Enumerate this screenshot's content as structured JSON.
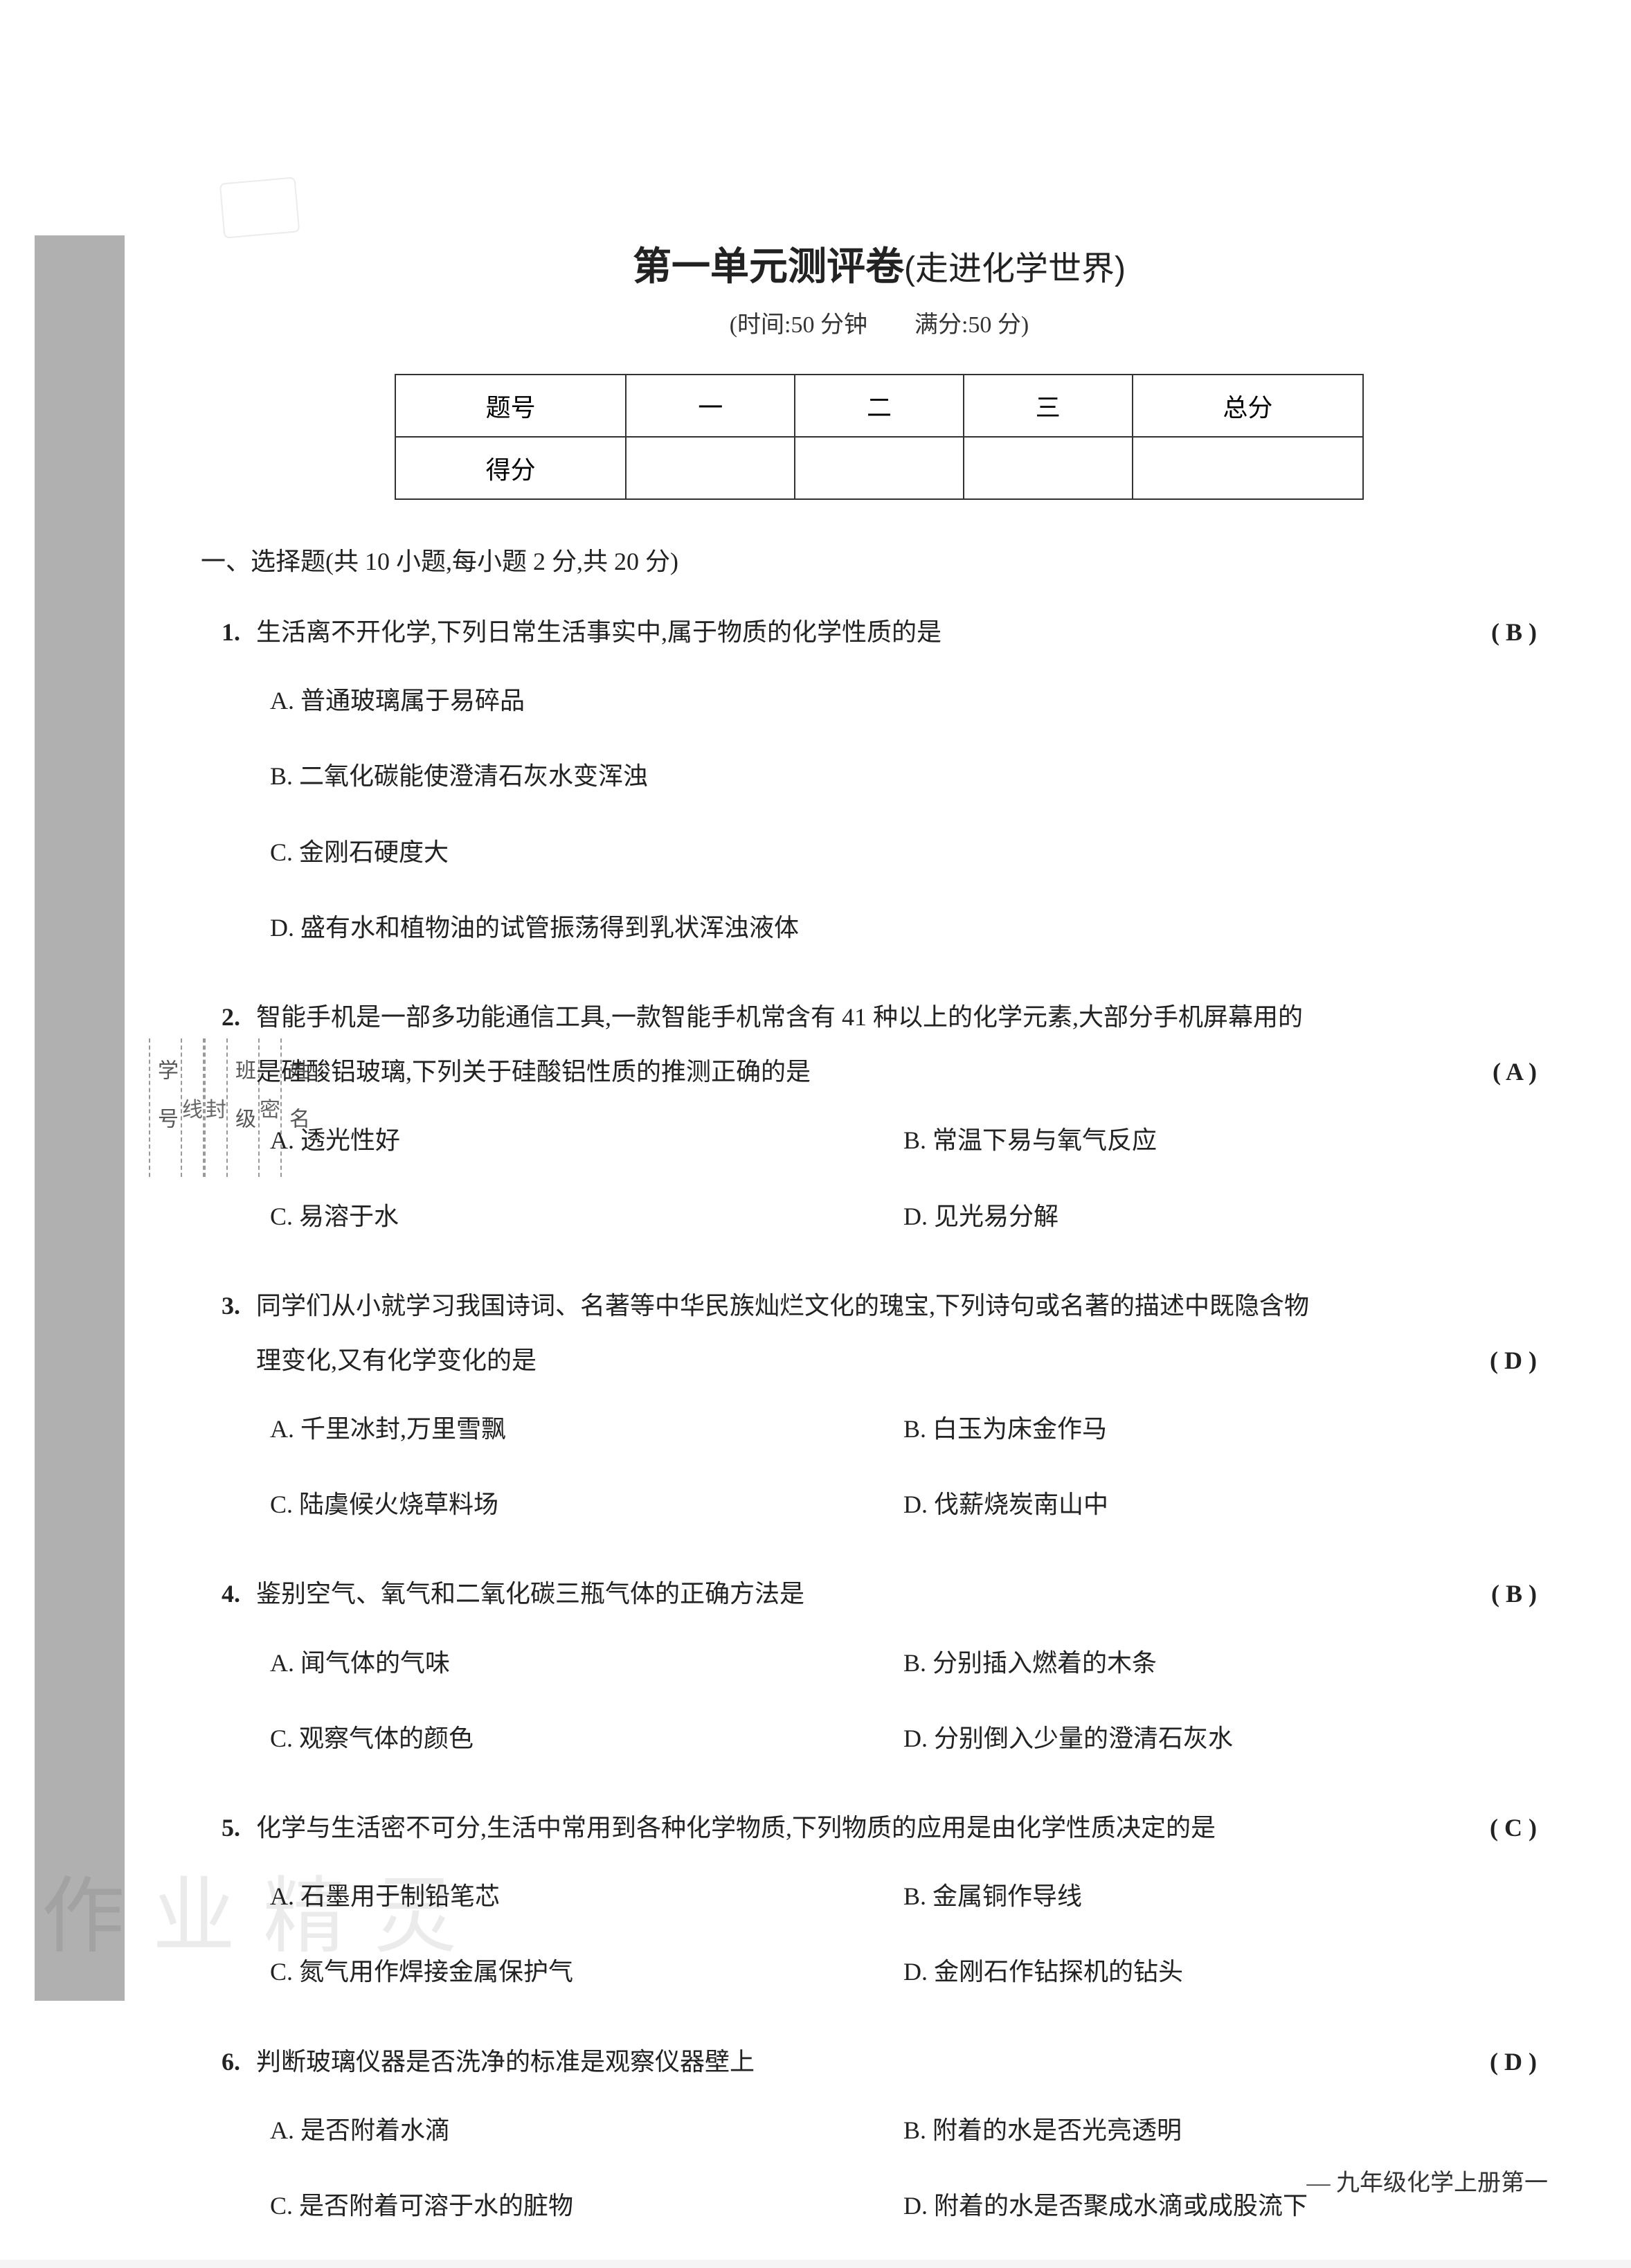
{
  "title_main": "第一单元测评卷",
  "title_sub": "(走进化学世界)",
  "subtitle": "(时间:50 分钟　　满分:50 分)",
  "score_table": {
    "headers": [
      "题号",
      "一",
      "二",
      "三",
      "总分"
    ],
    "row_label": "得分"
  },
  "section1": {
    "header": "一、选择题(共 10 小题,每小题 2 分,共 20 分)"
  },
  "questions": [
    {
      "num": "1.",
      "stem": "生活离不开化学,下列日常生活事实中,属于物质的化学性质的是",
      "answer": "( B )",
      "layout": "single",
      "options": [
        "A. 普通玻璃属于易碎品",
        "B. 二氧化碳能使澄清石灰水变浑浊",
        "C. 金刚石硬度大",
        "D. 盛有水和植物油的试管振荡得到乳状浑浊液体"
      ]
    },
    {
      "num": "2.",
      "stem": "智能手机是一部多功能通信工具,一款智能手机常含有 41 种以上的化学元素,大部分手机屏幕用的",
      "stem2": "是硅酸铝玻璃,下列关于硅酸铝性质的推测正确的是",
      "answer": "( A )",
      "layout": "double",
      "options": [
        [
          "A. 透光性好",
          "B. 常温下易与氧气反应"
        ],
        [
          "C. 易溶于水",
          "D. 见光易分解"
        ]
      ]
    },
    {
      "num": "3.",
      "stem": "同学们从小就学习我国诗词、名著等中华民族灿烂文化的瑰宝,下列诗句或名著的描述中既隐含物",
      "stem2": "理变化,又有化学变化的是",
      "answer": "( D )",
      "layout": "double",
      "options": [
        [
          "A. 千里冰封,万里雪飘",
          "B. 白玉为床金作马"
        ],
        [
          "C. 陆虞候火烧草料场",
          "D. 伐薪烧炭南山中"
        ]
      ]
    },
    {
      "num": "4.",
      "stem": "鉴别空气、氧气和二氧化碳三瓶气体的正确方法是",
      "answer": "( B )",
      "layout": "double",
      "options": [
        [
          "A. 闻气体的气味",
          "B. 分别插入燃着的木条"
        ],
        [
          "C. 观察气体的颜色",
          "D. 分别倒入少量的澄清石灰水"
        ]
      ]
    },
    {
      "num": "5.",
      "stem": "化学与生活密不可分,生活中常用到各种化学物质,下列物质的应用是由化学性质决定的是",
      "answer": "( C )",
      "layout": "double",
      "options": [
        [
          "A. 石墨用于制铅笔芯",
          "B. 金属铜作导线"
        ],
        [
          "C. 氮气用作焊接金属保护气",
          "D. 金刚石作钻探机的钻头"
        ]
      ]
    },
    {
      "num": "6.",
      "stem": "判断玻璃仪器是否洗净的标准是观察仪器壁上",
      "answer": "( D )",
      "layout": "double",
      "options": [
        [
          "A. 是否附着水滴",
          "B. 附着的水是否光亮透明"
        ],
        [
          "C. 是否附着可溶于水的脏物",
          "D. 附着的水是否聚成水滴或成股流下"
        ]
      ]
    }
  ],
  "footer": "— 九年级化学上册第一",
  "watermark": "作业精灵",
  "binding": {
    "fields": [
      "学号",
      "班级",
      "姓名"
    ],
    "marks": [
      "线",
      "封",
      "密"
    ]
  },
  "colors": {
    "text": "#222222",
    "border": "#333333",
    "margin_block": "#b0b0b0",
    "background": "#ffffff"
  },
  "fonts": {
    "title_size": 56,
    "body_size": 36,
    "subtitle_size": 34
  }
}
